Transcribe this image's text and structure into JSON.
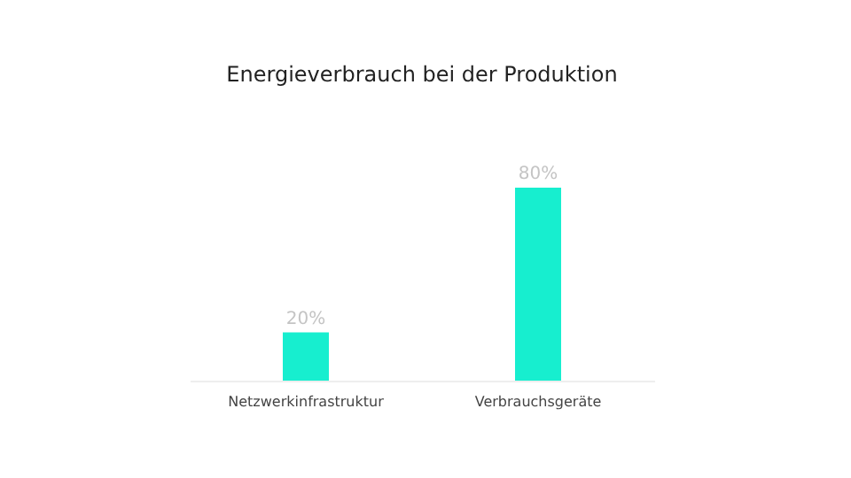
{
  "chart_data": {
    "type": "bar",
    "title": "Energieverbrauch bei der Produktion",
    "categories": [
      "Netzwerkinfrastruktur",
      "Verbrauchsgeräte"
    ],
    "values": [
      20,
      80
    ],
    "value_labels": [
      "20%",
      "80%"
    ],
    "color": "#17eecf"
  }
}
